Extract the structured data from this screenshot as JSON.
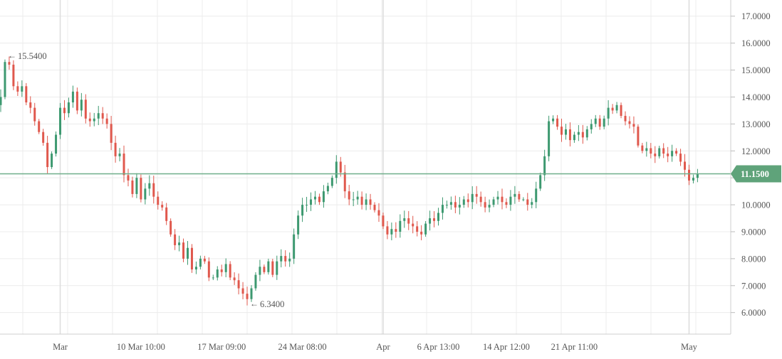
{
  "chart_data": {
    "type": "candlestick",
    "colors": {
      "up": "#3d9970",
      "down": "#e0584d",
      "current_line": "#6fae8a",
      "current_badge": "#5fa37a",
      "grid": "#ececec",
      "major_grid": "#dcdcdc",
      "axis_text": "#555555"
    },
    "ylim": [
      5.2,
      17.6
    ],
    "y_ticks": [
      "6.0000",
      "7.0000",
      "8.0000",
      "9.0000",
      "10.0000",
      "11.0000",
      "12.0000",
      "13.0000",
      "14.0000",
      "15.0000",
      "16.0000",
      "17.0000"
    ],
    "y_tick_values": [
      6,
      7,
      8,
      9,
      10,
      11,
      12,
      13,
      14,
      15,
      16,
      17
    ],
    "x_labels": [
      {
        "label": "Mar",
        "index": 14,
        "major": true
      },
      {
        "label": "10 Mar 10:00",
        "index": 33,
        "major": false
      },
      {
        "label": "17 Mar 09:00",
        "index": 52,
        "major": false
      },
      {
        "label": "24 Mar 08:00",
        "index": 71,
        "major": false
      },
      {
        "label": "Apr",
        "index": 90,
        "major": true
      },
      {
        "label": "6 Apr 13:00",
        "index": 103,
        "major": false
      },
      {
        "label": "14 Apr 12:00",
        "index": 119,
        "major": false
      },
      {
        "label": "21 Apr 11:00",
        "index": 135,
        "major": false
      },
      {
        "label": "May",
        "index": 162,
        "major": true
      }
    ],
    "current_price": {
      "value": 11.15,
      "label": "11.1500"
    },
    "annotations": [
      {
        "label": "15.5400",
        "value": 15.54,
        "index": 1
      },
      {
        "label": "6.3400",
        "value": 6.34,
        "index": 58
      }
    ],
    "closes": [
      14.0,
      15.3,
      15.2,
      14.4,
      14.2,
      14.4,
      13.8,
      13.6,
      13.1,
      12.7,
      12.3,
      11.4,
      11.9,
      12.6,
      13.6,
      13.4,
      13.8,
      14.2,
      13.5,
      13.9,
      13.2,
      13.1,
      13.2,
      13.4,
      13.2,
      13.0,
      12.3,
      11.8,
      11.9,
      11.1,
      10.9,
      10.4,
      11.0,
      10.2,
      10.6,
      10.8,
      10.3,
      10.0,
      9.9,
      9.4,
      8.9,
      8.5,
      8.6,
      8.0,
      8.4,
      7.6,
      7.7,
      8.0,
      7.9,
      7.3,
      7.3,
      7.6,
      7.5,
      7.8,
      7.3,
      7.2,
      6.9,
      6.7,
      6.5,
      6.9,
      7.4,
      7.7,
      7.5,
      7.9,
      7.4,
      7.9,
      8.1,
      7.9,
      8.0,
      8.9,
      9.6,
      10.0,
      10.0,
      10.2,
      10.3,
      10.1,
      10.5,
      10.7,
      11.0,
      11.6,
      11.2,
      10.5,
      10.2,
      10.2,
      10.3,
      10.0,
      10.2,
      10.0,
      9.8,
      9.6,
      9.2,
      8.9,
      9.1,
      9.0,
      9.4,
      9.5,
      9.3,
      9.2,
      9.0,
      8.9,
      9.3,
      9.5,
      9.4,
      9.7,
      10.0,
      10.0,
      10.1,
      9.9,
      10.0,
      10.2,
      10.1,
      10.4,
      10.3,
      10.1,
      9.9,
      10.0,
      10.2,
      10.3,
      10.1,
      10.0,
      10.3,
      10.4,
      10.2,
      10.2,
      10.0,
      10.1,
      10.6,
      11.1,
      11.8,
      13.1,
      13.2,
      12.9,
      12.6,
      12.8,
      12.4,
      12.6,
      12.7,
      12.5,
      12.8,
      13.0,
      13.2,
      12.9,
      13.2,
      13.6,
      13.5,
      13.7,
      13.3,
      13.1,
      13.0,
      12.9,
      12.2,
      12.0,
      12.1,
      11.9,
      11.8,
      12.1,
      11.9,
      11.8,
      12.0,
      11.9,
      11.6,
      11.3,
      10.9,
      11.0,
      11.15
    ]
  }
}
